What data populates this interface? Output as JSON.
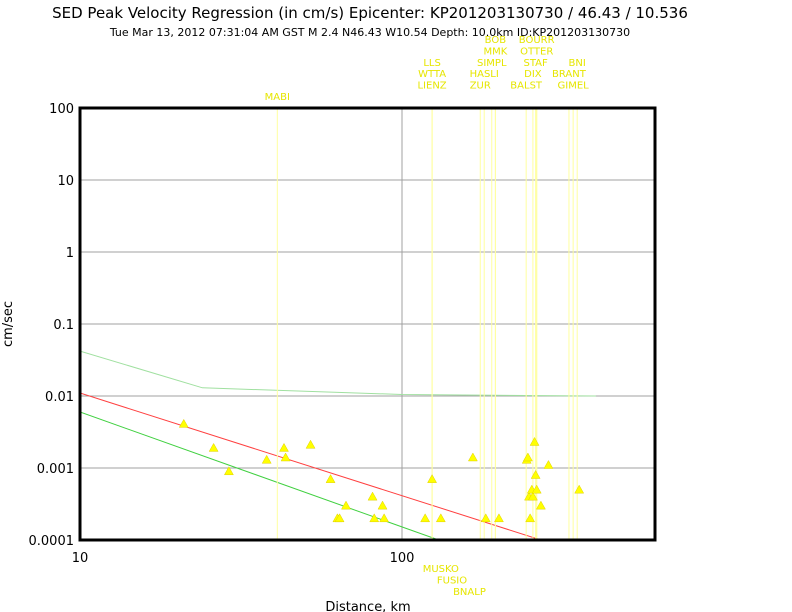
{
  "header": {
    "title": "SED Peak Velocity Regression (in cm/s) Epicenter: KP201203130730 / 46.43 / 10.536",
    "subtitle": "Tue Mar 13, 2012 07:31:04 AM GST    M 2.4    N46.43 W10.54   Depth: 10.0km   ID:KP201203130730"
  },
  "chart_data": {
    "type": "scatter",
    "title": "SED Peak Velocity Regression (in cm/s) Epicenter: KP201203130730 / 46.43 / 10.536",
    "xlabel": "Distance, km",
    "ylabel": "cm/sec",
    "xscale": "log",
    "yscale": "log",
    "xlim": [
      10,
      560
    ],
    "ylim": [
      0.0001,
      100
    ],
    "grid": true,
    "x_ticks": [
      10,
      100
    ],
    "x_tick_labels": [
      "10",
      "100"
    ],
    "y_ticks": [
      0.0001,
      0.001,
      0.01,
      0.1,
      1,
      10,
      100
    ],
    "y_tick_labels": [
      "0.0001",
      "0.001",
      "0.01",
      "0.1",
      "1",
      "10",
      "100"
    ],
    "colors": {
      "points": "#ffff00",
      "station_labels": "#e6e600",
      "regression": "#ff4040",
      "lower_bound": "#40d040",
      "upper_bound": "#a0e0a0",
      "grid": "#a0a0a0",
      "frame": "#000000"
    },
    "lines": [
      {
        "role": "regression",
        "points": [
          [
            10,
            0.011
          ],
          [
            270,
            0.0001
          ]
        ]
      },
      {
        "role": "lower",
        "points": [
          [
            10,
            0.006
          ],
          [
            130,
            0.0001
          ]
        ]
      },
      {
        "role": "upper",
        "points": [
          [
            10,
            0.042
          ],
          [
            24,
            0.013
          ],
          [
            100,
            0.0105
          ],
          [
            400,
            0.01
          ]
        ]
      }
    ],
    "points": [
      {
        "x": 21,
        "y": 0.0041
      },
      {
        "x": 26,
        "y": 0.0019
      },
      {
        "x": 29,
        "y": 0.0009
      },
      {
        "x": 38,
        "y": 0.0013
      },
      {
        "x": 43,
        "y": 0.0019
      },
      {
        "x": 43.5,
        "y": 0.0014
      },
      {
        "x": 52,
        "y": 0.0021
      },
      {
        "x": 60,
        "y": 0.0007
      },
      {
        "x": 63,
        "y": 0.0002
      },
      {
        "x": 64,
        "y": 0.0002
      },
      {
        "x": 67,
        "y": 0.0003
      },
      {
        "x": 81,
        "y": 0.0004
      },
      {
        "x": 82,
        "y": 0.0002
      },
      {
        "x": 87,
        "y": 0.0003
      },
      {
        "x": 88,
        "y": 0.0002
      },
      {
        "x": 118,
        "y": 0.0002
      },
      {
        "x": 124,
        "y": 0.0007
      },
      {
        "x": 132,
        "y": 0.0002
      },
      {
        "x": 166,
        "y": 0.0014
      },
      {
        "x": 182,
        "y": 0.0002
      },
      {
        "x": 200,
        "y": 0.0002
      },
      {
        "x": 244,
        "y": 0.0013
      },
      {
        "x": 246,
        "y": 0.0014
      },
      {
        "x": 248,
        "y": 0.0004
      },
      {
        "x": 250,
        "y": 0.0002
      },
      {
        "x": 253,
        "y": 0.0005
      },
      {
        "x": 255,
        "y": 0.0004
      },
      {
        "x": 258,
        "y": 0.0023
      },
      {
        "x": 260,
        "y": 0.0008
      },
      {
        "x": 262,
        "y": 0.0005
      },
      {
        "x": 270,
        "y": 0.0003
      },
      {
        "x": 285,
        "y": 0.0011
      },
      {
        "x": 355,
        "y": 0.0005
      }
    ],
    "stations": [
      {
        "name": "MABI",
        "x": 41,
        "row": 0,
        "side": "top"
      },
      {
        "name": "LLS",
        "x": 124,
        "row": 3,
        "side": "top"
      },
      {
        "name": "WTTA",
        "x": 124,
        "row": 2,
        "side": "top"
      },
      {
        "name": "LIENZ",
        "x": 124,
        "row": 1,
        "side": "top"
      },
      {
        "name": "BOB",
        "x": 195,
        "row": 5,
        "side": "top"
      },
      {
        "name": "MMK",
        "x": 195,
        "row": 4,
        "side": "top"
      },
      {
        "name": "SIMPL",
        "x": 190,
        "row": 3,
        "side": "top"
      },
      {
        "name": "HASLI",
        "x": 180,
        "row": 2,
        "side": "top"
      },
      {
        "name": "ZUR",
        "x": 175,
        "row": 1,
        "side": "top"
      },
      {
        "name": "BOURR",
        "x": 262,
        "row": 5,
        "side": "top"
      },
      {
        "name": "OTTER",
        "x": 262,
        "row": 4,
        "side": "top"
      },
      {
        "name": "STAF",
        "x": 260,
        "row": 3,
        "side": "top"
      },
      {
        "name": "DIX",
        "x": 255,
        "row": 2,
        "side": "top"
      },
      {
        "name": "BALST",
        "x": 243,
        "row": 1,
        "side": "top"
      },
      {
        "name": "BNI",
        "x": 350,
        "row": 3,
        "side": "top"
      },
      {
        "name": "BRANT",
        "x": 330,
        "row": 2,
        "side": "top"
      },
      {
        "name": "GIMEL",
        "x": 340,
        "row": 1,
        "side": "top"
      },
      {
        "name": "MUSKO",
        "x": 132,
        "row": 0,
        "side": "bottom"
      },
      {
        "name": "FUSIO",
        "x": 143,
        "row": 1,
        "side": "bottom"
      },
      {
        "name": "BNALP",
        "x": 162,
        "row": 2,
        "side": "bottom"
      }
    ]
  }
}
